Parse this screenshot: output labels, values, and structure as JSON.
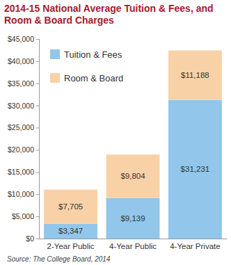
{
  "chart_data": {
    "type": "bar",
    "title": "2014-15 National Average Tuition & Fees, and Room & Board Charges",
    "source": "Source: The College Board, 2014",
    "categories": [
      "2-Year Public",
      "4-Year Public",
      "4-Year Private"
    ],
    "series": [
      {
        "name": "Tuition & Fees",
        "color": "#92c6ea",
        "values": [
          3347,
          9139,
          31231
        ],
        "value_labels": [
          "$3,347",
          "$9,139",
          "$31,231"
        ]
      },
      {
        "name": "Room & Board",
        "color": "#f8d2a6",
        "values": [
          7705,
          9804,
          11188
        ],
        "value_labels": [
          "$7,705",
          "$9,804",
          "$11,188"
        ]
      }
    ],
    "stacked": true,
    "data_labels": true,
    "legend": "upper-left",
    "grid": false,
    "ylim": [
      0,
      45000
    ],
    "yticks": [
      {
        "value": 0,
        "label": "$0"
      },
      {
        "value": 5000,
        "label": "$5,000"
      },
      {
        "value": 10000,
        "label": "$10,000"
      },
      {
        "value": 15000,
        "label": "$15,000"
      },
      {
        "value": 20000,
        "label": "$20,000"
      },
      {
        "value": 25000,
        "label": "$25,000"
      },
      {
        "value": 30000,
        "label": "$30,000"
      },
      {
        "value": 35000,
        "label": "$35,000"
      },
      {
        "value": 40000,
        "label": "$40,000"
      },
      {
        "value": 45000,
        "label": "$45,000"
      }
    ]
  }
}
